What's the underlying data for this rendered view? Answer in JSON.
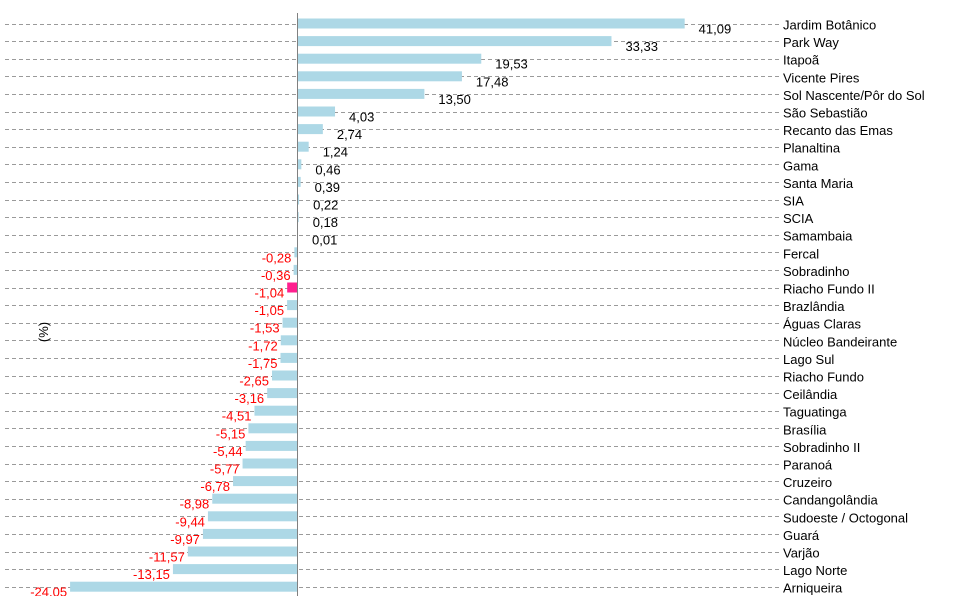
{
  "chart_data": {
    "type": "bar",
    "orientation": "horizontal",
    "ylabel": "(%)",
    "xlim": [
      -24.05,
      41.09
    ],
    "grid": true,
    "bar_color": "#add8e6",
    "highlight_color": "#ff1f8e",
    "negative_label_color": "#ff0000",
    "positive_label_color": "#000000",
    "categories": [
      "Jardim Botânico",
      "Park Way",
      "Itapoã",
      "Vicente Pires",
      "Sol Nascente/Pôr do Sol",
      "São Sebastião",
      "Recanto das Emas",
      "Planaltina",
      "Gama",
      "Santa Maria",
      "SIA",
      "SCIA",
      "Samambaia",
      "Fercal",
      "Sobradinho",
      "Riacho Fundo II",
      "Brazlândia",
      "Águas Claras",
      "Núcleo Bandeirante",
      "Lago Sul",
      "Riacho Fundo",
      "Ceilândia",
      "Taguatinga",
      "Brasília",
      "Sobradinho II",
      "Paranoá",
      "Cruzeiro",
      "Candangolândia",
      "Sudoeste / Octogonal",
      "Guará",
      "Varjão",
      "Lago Norte",
      "Arniqueira"
    ],
    "values": [
      41.09,
      33.33,
      19.53,
      17.48,
      13.5,
      4.03,
      2.74,
      1.24,
      0.46,
      0.39,
      0.22,
      0.18,
      0.01,
      -0.28,
      -0.36,
      -1.04,
      -1.05,
      -1.53,
      -1.72,
      -1.75,
      -2.65,
      -3.16,
      -4.51,
      -5.15,
      -5.44,
      -5.77,
      -6.78,
      -8.98,
      -9.44,
      -9.97,
      -11.57,
      -13.15,
      -24.05
    ],
    "value_labels": [
      "41,09",
      "33,33",
      "19,53",
      "17,48",
      "13,50",
      "4,03",
      "2,74",
      "1,24",
      "0,46",
      "0,39",
      "0,22",
      "0,18",
      "0,01",
      "-0,28",
      "-0,36",
      "-1,04",
      "-1,05",
      "-1,53",
      "-1,72",
      "-1,75",
      "-2,65",
      "-3,16",
      "-4,51",
      "-5,15",
      "-5,44",
      "-5,77",
      "-6,78",
      "-8,98",
      "-9,44",
      "-9,97",
      "-11,57",
      "-13,15",
      "-24,05"
    ],
    "highlight_category": "Riacho Fundo II"
  }
}
